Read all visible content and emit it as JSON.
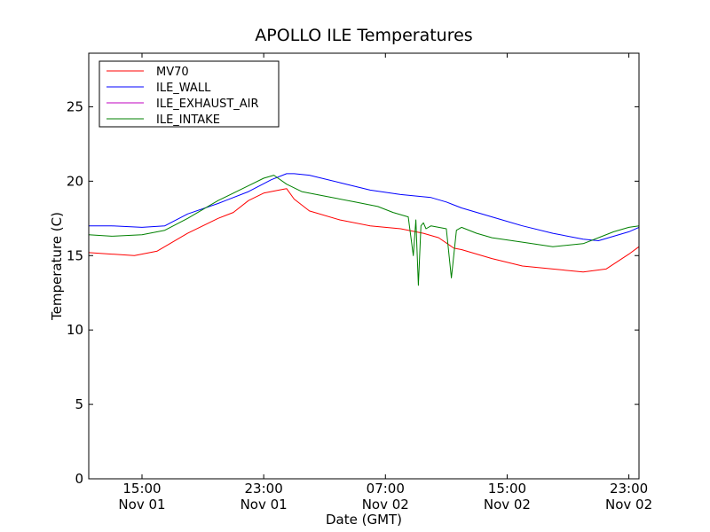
{
  "chart_data": {
    "type": "line",
    "title": "APOLLO ILE Temperatures",
    "xlabel": "Date (GMT)",
    "ylabel": "Temperature (C)",
    "xlim": [
      "2024-11-01T11:30",
      "2024-11-02T23:40"
    ],
    "ylim": [
      0,
      28.6
    ],
    "grid": false,
    "legend_position": "top-left",
    "x_ticks": [
      {
        "at": "2024-11-01T15:00",
        "line1": "15:00",
        "line2": "Nov 01"
      },
      {
        "at": "2024-11-01T23:00",
        "line1": "23:00",
        "line2": "Nov 01"
      },
      {
        "at": "2024-11-02T07:00",
        "line1": "07:00",
        "line2": "Nov 02"
      },
      {
        "at": "2024-11-02T15:00",
        "line1": "15:00",
        "line2": "Nov 02"
      },
      {
        "at": "2024-11-02T23:00",
        "line1": "23:00",
        "line2": "Nov 02"
      }
    ],
    "y_ticks": [
      0,
      5,
      10,
      15,
      20,
      25
    ],
    "series": [
      {
        "name": "MV70",
        "color": "#ff0000",
        "x": [
          "2024-11-01T11:30",
          "2024-11-01T13:00",
          "2024-11-01T14:30",
          "2024-11-01T16:00",
          "2024-11-01T18:00",
          "2024-11-01T20:00",
          "2024-11-01T21:00",
          "2024-11-01T22:00",
          "2024-11-01T23:00",
          "2024-11-02T00:00",
          "2024-11-02T00:30",
          "2024-11-02T01:00",
          "2024-11-02T02:00",
          "2024-11-02T04:00",
          "2024-11-02T06:00",
          "2024-11-02T08:00",
          "2024-11-02T09:30",
          "2024-11-02T10:30",
          "2024-11-02T11:30",
          "2024-11-02T12:00",
          "2024-11-02T14:00",
          "2024-11-02T16:00",
          "2024-11-02T18:00",
          "2024-11-02T20:00",
          "2024-11-02T21:30",
          "2024-11-02T23:00",
          "2024-11-02T23:40"
        ],
        "y": [
          15.2,
          15.1,
          15.0,
          15.3,
          16.5,
          17.5,
          17.9,
          18.7,
          19.2,
          19.4,
          19.5,
          18.8,
          18.0,
          17.4,
          17.0,
          16.8,
          16.5,
          16.2,
          15.5,
          15.4,
          14.8,
          14.3,
          14.1,
          13.9,
          14.1,
          15.1,
          15.6
        ]
      },
      {
        "name": "ILE_WALL",
        "color": "#0000ff",
        "x": [
          "2024-11-01T11:30",
          "2024-11-01T13:00",
          "2024-11-01T15:00",
          "2024-11-01T16:30",
          "2024-11-01T18:00",
          "2024-11-01T20:00",
          "2024-11-01T22:00",
          "2024-11-01T23:30",
          "2024-11-02T00:30",
          "2024-11-02T01:00",
          "2024-11-02T02:00",
          "2024-11-02T04:00",
          "2024-11-02T06:00",
          "2024-11-02T08:00",
          "2024-11-02T10:00",
          "2024-11-02T11:00",
          "2024-11-02T12:00",
          "2024-11-02T14:00",
          "2024-11-02T16:00",
          "2024-11-02T18:00",
          "2024-11-02T20:00",
          "2024-11-02T21:00",
          "2024-11-02T23:00",
          "2024-11-02T23:40"
        ],
        "y": [
          17.0,
          17.0,
          16.9,
          17.0,
          17.8,
          18.5,
          19.3,
          20.1,
          20.5,
          20.5,
          20.4,
          19.9,
          19.4,
          19.1,
          18.9,
          18.6,
          18.2,
          17.6,
          17.0,
          16.5,
          16.1,
          16.0,
          16.6,
          16.9
        ]
      },
      {
        "name": "ILE_EXHAUST_AIR",
        "color": "#bf00bf",
        "x": [],
        "y": []
      },
      {
        "name": "ILE_INTAKE",
        "color": "#008000",
        "x": [
          "2024-11-01T11:30",
          "2024-11-01T13:00",
          "2024-11-01T15:00",
          "2024-11-01T16:30",
          "2024-11-01T18:00",
          "2024-11-01T20:00",
          "2024-11-01T22:00",
          "2024-11-01T23:00",
          "2024-11-01T23:40",
          "2024-11-02T00:30",
          "2024-11-02T01:30",
          "2024-11-02T03:00",
          "2024-11-02T05:00",
          "2024-11-02T06:30",
          "2024-11-02T07:30",
          "2024-11-02T08:30",
          "2024-11-02T08:50",
          "2024-11-02T09:00",
          "2024-11-02T09:10",
          "2024-11-02T09:20",
          "2024-11-02T09:30",
          "2024-11-02T09:40",
          "2024-11-02T10:00",
          "2024-11-02T10:30",
          "2024-11-02T11:00",
          "2024-11-02T11:20",
          "2024-11-02T11:40",
          "2024-11-02T12:00",
          "2024-11-02T13:00",
          "2024-11-02T14:00",
          "2024-11-02T16:00",
          "2024-11-02T18:00",
          "2024-11-02T20:00",
          "2024-11-02T21:00",
          "2024-11-02T22:00",
          "2024-11-02T23:00",
          "2024-11-02T23:40"
        ],
        "y": [
          16.4,
          16.3,
          16.4,
          16.7,
          17.5,
          18.7,
          19.7,
          20.2,
          20.4,
          19.8,
          19.3,
          19.0,
          18.6,
          18.3,
          17.9,
          17.6,
          15.0,
          17.4,
          13.0,
          17.0,
          17.2,
          16.8,
          17.0,
          16.9,
          16.8,
          13.5,
          16.7,
          16.9,
          16.5,
          16.2,
          15.9,
          15.6,
          15.8,
          16.2,
          16.6,
          16.9,
          17.0
        ]
      }
    ]
  }
}
